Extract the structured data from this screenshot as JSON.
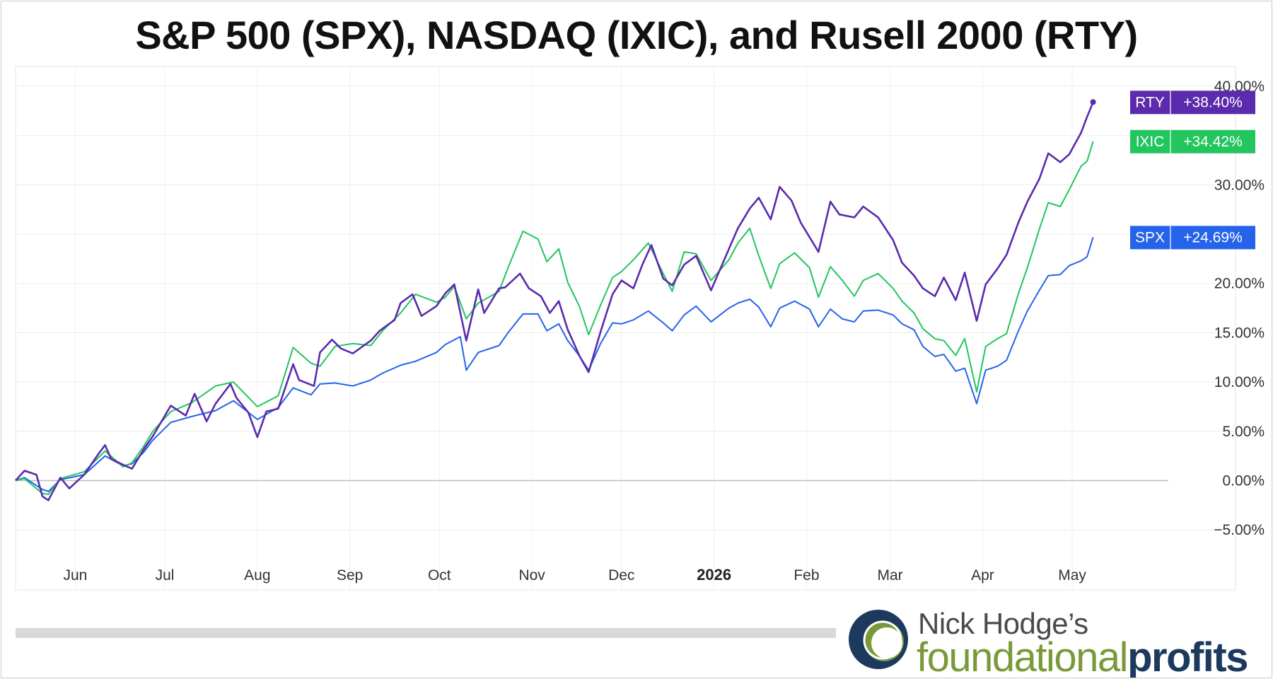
{
  "chart_data": {
    "type": "line",
    "title": "S&P 500 (SPX), NASDAQ (IXIC), and Rusell 2000 (RTY)",
    "xlabel": "",
    "ylabel": "",
    "ylim": [
      -7,
      40
    ],
    "y_ticks": [
      "40.00%",
      "30.00%",
      "20.00%",
      "15.00%",
      "10.00%",
      "5.00%",
      "0.00%",
      "−5.00%"
    ],
    "y_tick_values": [
      40,
      30,
      20,
      15,
      10,
      5,
      0,
      -5
    ],
    "x_tick_labels": [
      "Jun",
      "Jul",
      "Aug",
      "Sep",
      "Oct",
      "Nov",
      "Dec",
      "2026",
      "Feb",
      "Mar",
      "Apr",
      "May"
    ],
    "x_tick_dates": [
      "2025-06-01",
      "2025-07-01",
      "2025-08-01",
      "2025-09-01",
      "2025-10-01",
      "2025-11-01",
      "2025-12-01",
      "2026-01-01",
      "2026-02-01",
      "2026-03-01",
      "2026-04-01",
      "2026-05-01"
    ],
    "xlim": [
      "2025-05-12",
      "2026-05-28"
    ],
    "grid": true,
    "legend": "right-edge tags",
    "series": [
      {
        "name": "RTY",
        "label": "+38.40%",
        "color": "#5b2aad",
        "points": [
          [
            "2025-05-12",
            0.0
          ],
          [
            "2025-05-15",
            1.0
          ],
          [
            "2025-05-19",
            0.6
          ],
          [
            "2025-05-21",
            -1.6
          ],
          [
            "2025-05-23",
            -2.0
          ],
          [
            "2025-05-27",
            0.3
          ],
          [
            "2025-05-30",
            -0.8
          ],
          [
            "2025-06-04",
            0.6
          ],
          [
            "2025-06-09",
            2.8
          ],
          [
            "2025-06-11",
            3.6
          ],
          [
            "2025-06-13",
            2.2
          ],
          [
            "2025-06-17",
            1.6
          ],
          [
            "2025-06-20",
            1.2
          ],
          [
            "2025-06-24",
            3.2
          ],
          [
            "2025-06-27",
            4.5
          ],
          [
            "2025-07-03",
            7.6
          ],
          [
            "2025-07-08",
            6.6
          ],
          [
            "2025-07-11",
            8.8
          ],
          [
            "2025-07-15",
            6.0
          ],
          [
            "2025-07-18",
            7.8
          ],
          [
            "2025-07-23",
            9.8
          ],
          [
            "2025-07-25",
            8.4
          ],
          [
            "2025-07-29",
            6.9
          ],
          [
            "2025-08-01",
            4.4
          ],
          [
            "2025-08-04",
            7.0
          ],
          [
            "2025-08-08",
            7.3
          ],
          [
            "2025-08-13",
            11.8
          ],
          [
            "2025-08-15",
            10.2
          ],
          [
            "2025-08-20",
            9.6
          ],
          [
            "2025-08-22",
            13.0
          ],
          [
            "2025-08-26",
            14.3
          ],
          [
            "2025-08-29",
            13.4
          ],
          [
            "2025-09-02",
            12.9
          ],
          [
            "2025-09-08",
            14.2
          ],
          [
            "2025-09-11",
            15.2
          ],
          [
            "2025-09-16",
            16.3
          ],
          [
            "2025-09-18",
            18.0
          ],
          [
            "2025-09-22",
            18.9
          ],
          [
            "2025-09-25",
            16.7
          ],
          [
            "2025-09-30",
            17.7
          ],
          [
            "2025-10-03",
            19.0
          ],
          [
            "2025-10-06",
            19.9
          ],
          [
            "2025-10-10",
            14.2
          ],
          [
            "2025-10-14",
            19.4
          ],
          [
            "2025-10-16",
            17.0
          ],
          [
            "2025-10-21",
            19.5
          ],
          [
            "2025-10-23",
            19.6
          ],
          [
            "2025-10-28",
            21.0
          ],
          [
            "2025-10-31",
            19.5
          ],
          [
            "2025-11-04",
            18.7
          ],
          [
            "2025-11-07",
            17.0
          ],
          [
            "2025-11-10",
            18.2
          ],
          [
            "2025-11-13",
            15.3
          ],
          [
            "2025-11-17",
            12.6
          ],
          [
            "2025-11-20",
            11.0
          ],
          [
            "2025-11-24",
            15.1
          ],
          [
            "2025-11-28",
            18.9
          ],
          [
            "2025-12-01",
            20.3
          ],
          [
            "2025-12-05",
            19.5
          ],
          [
            "2025-12-08",
            21.9
          ],
          [
            "2025-12-11",
            23.9
          ],
          [
            "2025-12-15",
            20.5
          ],
          [
            "2025-12-18",
            19.8
          ],
          [
            "2025-12-22",
            21.9
          ],
          [
            "2025-12-26",
            22.8
          ],
          [
            "2025-12-31",
            19.3
          ],
          [
            "2026-01-06",
            23.5
          ],
          [
            "2026-01-09",
            25.6
          ],
          [
            "2026-01-13",
            27.6
          ],
          [
            "2026-01-16",
            28.7
          ],
          [
            "2026-01-20",
            26.5
          ],
          [
            "2026-01-23",
            29.8
          ],
          [
            "2026-01-27",
            28.4
          ],
          [
            "2026-01-30",
            26.2
          ],
          [
            "2026-02-05",
            23.2
          ],
          [
            "2026-02-09",
            28.3
          ],
          [
            "2026-02-12",
            27.0
          ],
          [
            "2026-02-17",
            26.7
          ],
          [
            "2026-02-20",
            27.8
          ],
          [
            "2026-02-25",
            26.7
          ],
          [
            "2026-03-02",
            24.4
          ],
          [
            "2026-03-05",
            22.1
          ],
          [
            "2026-03-09",
            20.8
          ],
          [
            "2026-03-12",
            19.5
          ],
          [
            "2026-03-16",
            18.7
          ],
          [
            "2026-03-19",
            20.6
          ],
          [
            "2026-03-23",
            18.3
          ],
          [
            "2026-03-26",
            21.1
          ],
          [
            "2026-03-30",
            16.2
          ],
          [
            "2026-04-02",
            19.9
          ],
          [
            "2026-04-06",
            21.5
          ],
          [
            "2026-04-09",
            22.9
          ],
          [
            "2026-04-13",
            26.2
          ],
          [
            "2026-04-16",
            28.3
          ],
          [
            "2026-04-20",
            30.6
          ],
          [
            "2026-04-23",
            33.2
          ],
          [
            "2026-04-27",
            32.3
          ],
          [
            "2026-04-30",
            33.1
          ],
          [
            "2026-05-04",
            35.3
          ],
          [
            "2026-05-06",
            36.9
          ],
          [
            "2026-05-08",
            38.4
          ]
        ]
      },
      {
        "name": "IXIC",
        "label": "+34.42%",
        "color": "#22c55e",
        "points": [
          [
            "2025-05-12",
            0.0
          ],
          [
            "2025-05-15",
            0.2
          ],
          [
            "2025-05-21",
            -1.3
          ],
          [
            "2025-05-23",
            -1.4
          ],
          [
            "2025-05-27",
            0.2
          ],
          [
            "2025-06-04",
            0.9
          ],
          [
            "2025-06-11",
            3.0
          ],
          [
            "2025-06-17",
            1.4
          ],
          [
            "2025-06-20",
            1.8
          ],
          [
            "2025-06-24",
            3.5
          ],
          [
            "2025-06-27",
            5.0
          ],
          [
            "2025-07-03",
            7.0
          ],
          [
            "2025-07-10",
            7.9
          ],
          [
            "2025-07-18",
            9.6
          ],
          [
            "2025-07-24",
            10.0
          ],
          [
            "2025-08-01",
            7.5
          ],
          [
            "2025-08-08",
            8.6
          ],
          [
            "2025-08-13",
            13.5
          ],
          [
            "2025-08-19",
            11.9
          ],
          [
            "2025-08-22",
            11.6
          ],
          [
            "2025-08-27",
            13.6
          ],
          [
            "2025-09-02",
            13.9
          ],
          [
            "2025-09-08",
            13.7
          ],
          [
            "2025-09-12",
            15.2
          ],
          [
            "2025-09-18",
            17.0
          ],
          [
            "2025-09-23",
            18.9
          ],
          [
            "2025-09-30",
            18.1
          ],
          [
            "2025-10-03",
            18.6
          ],
          [
            "2025-10-06",
            19.7
          ],
          [
            "2025-10-10",
            16.4
          ],
          [
            "2025-10-14",
            18.0
          ],
          [
            "2025-10-21",
            19.2
          ],
          [
            "2025-10-24",
            21.6
          ],
          [
            "2025-10-29",
            25.3
          ],
          [
            "2025-11-03",
            24.5
          ],
          [
            "2025-11-06",
            22.2
          ],
          [
            "2025-11-10",
            23.5
          ],
          [
            "2025-11-13",
            20.1
          ],
          [
            "2025-11-17",
            17.6
          ],
          [
            "2025-11-20",
            14.8
          ],
          [
            "2025-11-24",
            17.8
          ],
          [
            "2025-11-28",
            20.6
          ],
          [
            "2025-12-01",
            21.2
          ],
          [
            "2025-12-05",
            22.4
          ],
          [
            "2025-12-10",
            24.1
          ],
          [
            "2025-12-15",
            21.0
          ],
          [
            "2025-12-18",
            19.2
          ],
          [
            "2025-12-22",
            23.2
          ],
          [
            "2025-12-26",
            23.0
          ],
          [
            "2025-12-31",
            20.3
          ],
          [
            "2026-01-06",
            22.4
          ],
          [
            "2026-01-09",
            24.1
          ],
          [
            "2026-01-13",
            25.6
          ],
          [
            "2026-01-16",
            22.8
          ],
          [
            "2026-01-20",
            19.5
          ],
          [
            "2026-01-23",
            22.0
          ],
          [
            "2026-01-28",
            23.1
          ],
          [
            "2026-02-02",
            21.6
          ],
          [
            "2026-02-05",
            18.6
          ],
          [
            "2026-02-09",
            21.7
          ],
          [
            "2026-02-13",
            20.3
          ],
          [
            "2026-02-17",
            18.7
          ],
          [
            "2026-02-20",
            20.3
          ],
          [
            "2026-02-25",
            21.0
          ],
          [
            "2026-03-02",
            19.5
          ],
          [
            "2026-03-05",
            18.2
          ],
          [
            "2026-03-09",
            17.0
          ],
          [
            "2026-03-12",
            15.4
          ],
          [
            "2026-03-16",
            14.4
          ],
          [
            "2026-03-19",
            14.2
          ],
          [
            "2026-03-23",
            12.7
          ],
          [
            "2026-03-26",
            14.4
          ],
          [
            "2026-03-30",
            9.0
          ],
          [
            "2026-04-02",
            13.6
          ],
          [
            "2026-04-06",
            14.4
          ],
          [
            "2026-04-09",
            14.9
          ],
          [
            "2026-04-13",
            19.0
          ],
          [
            "2026-04-16",
            21.6
          ],
          [
            "2026-04-20",
            25.5
          ],
          [
            "2026-04-23",
            28.2
          ],
          [
            "2026-04-27",
            27.8
          ],
          [
            "2026-04-30",
            29.5
          ],
          [
            "2026-05-04",
            31.9
          ],
          [
            "2026-05-06",
            32.4
          ],
          [
            "2026-05-08",
            34.42
          ]
        ]
      },
      {
        "name": "SPX",
        "label": "+24.69%",
        "color": "#2563eb",
        "points": [
          [
            "2025-05-12",
            0.0
          ],
          [
            "2025-05-15",
            0.3
          ],
          [
            "2025-05-21",
            -0.9
          ],
          [
            "2025-05-23",
            -1.1
          ],
          [
            "2025-05-27",
            0.1
          ],
          [
            "2025-06-04",
            0.6
          ],
          [
            "2025-06-11",
            2.5
          ],
          [
            "2025-06-17",
            1.5
          ],
          [
            "2025-06-20",
            1.7
          ],
          [
            "2025-06-24",
            2.9
          ],
          [
            "2025-06-27",
            4.1
          ],
          [
            "2025-07-03",
            5.9
          ],
          [
            "2025-07-10",
            6.5
          ],
          [
            "2025-07-18",
            7.1
          ],
          [
            "2025-07-24",
            8.1
          ],
          [
            "2025-08-01",
            6.2
          ],
          [
            "2025-08-08",
            7.4
          ],
          [
            "2025-08-13",
            9.4
          ],
          [
            "2025-08-19",
            8.7
          ],
          [
            "2025-08-22",
            9.8
          ],
          [
            "2025-08-27",
            9.9
          ],
          [
            "2025-09-02",
            9.6
          ],
          [
            "2025-09-08",
            10.2
          ],
          [
            "2025-09-12",
            10.9
          ],
          [
            "2025-09-18",
            11.7
          ],
          [
            "2025-09-23",
            12.1
          ],
          [
            "2025-09-30",
            13.0
          ],
          [
            "2025-10-03",
            13.8
          ],
          [
            "2025-10-08",
            14.6
          ],
          [
            "2025-10-10",
            11.2
          ],
          [
            "2025-10-14",
            13.0
          ],
          [
            "2025-10-21",
            13.7
          ],
          [
            "2025-10-24",
            15.0
          ],
          [
            "2025-10-29",
            16.9
          ],
          [
            "2025-11-03",
            16.9
          ],
          [
            "2025-11-06",
            15.2
          ],
          [
            "2025-11-10",
            15.9
          ],
          [
            "2025-11-13",
            14.2
          ],
          [
            "2025-11-17",
            12.6
          ],
          [
            "2025-11-20",
            11.2
          ],
          [
            "2025-11-24",
            13.9
          ],
          [
            "2025-11-28",
            16.0
          ],
          [
            "2025-12-01",
            15.9
          ],
          [
            "2025-12-05",
            16.3
          ],
          [
            "2025-12-10",
            17.2
          ],
          [
            "2025-12-15",
            16.0
          ],
          [
            "2025-12-18",
            15.2
          ],
          [
            "2025-12-22",
            16.8
          ],
          [
            "2025-12-26",
            17.7
          ],
          [
            "2025-12-31",
            16.1
          ],
          [
            "2026-01-06",
            17.5
          ],
          [
            "2026-01-09",
            18.0
          ],
          [
            "2026-01-13",
            18.4
          ],
          [
            "2026-01-16",
            17.6
          ],
          [
            "2026-01-20",
            15.6
          ],
          [
            "2026-01-23",
            17.5
          ],
          [
            "2026-01-28",
            18.2
          ],
          [
            "2026-02-02",
            17.4
          ],
          [
            "2026-02-05",
            15.6
          ],
          [
            "2026-02-09",
            17.4
          ],
          [
            "2026-02-13",
            16.4
          ],
          [
            "2026-02-17",
            16.1
          ],
          [
            "2026-02-20",
            17.2
          ],
          [
            "2026-02-25",
            17.3
          ],
          [
            "2026-03-02",
            16.8
          ],
          [
            "2026-03-05",
            15.9
          ],
          [
            "2026-03-09",
            15.3
          ],
          [
            "2026-03-12",
            13.6
          ],
          [
            "2026-03-16",
            12.6
          ],
          [
            "2026-03-19",
            12.8
          ],
          [
            "2026-03-23",
            11.1
          ],
          [
            "2026-03-26",
            11.4
          ],
          [
            "2026-03-30",
            7.8
          ],
          [
            "2026-04-02",
            11.2
          ],
          [
            "2026-04-06",
            11.6
          ],
          [
            "2026-04-09",
            12.2
          ],
          [
            "2026-04-13",
            15.2
          ],
          [
            "2026-04-16",
            17.2
          ],
          [
            "2026-04-20",
            19.3
          ],
          [
            "2026-04-23",
            20.8
          ],
          [
            "2026-04-27",
            20.9
          ],
          [
            "2026-04-30",
            21.8
          ],
          [
            "2026-05-04",
            22.3
          ],
          [
            "2026-05-06",
            22.7
          ],
          [
            "2026-05-08",
            24.69
          ]
        ]
      }
    ]
  },
  "logo": {
    "line1": "Nick Hodge’s",
    "word1": "foundational",
    "word2": "profits"
  }
}
